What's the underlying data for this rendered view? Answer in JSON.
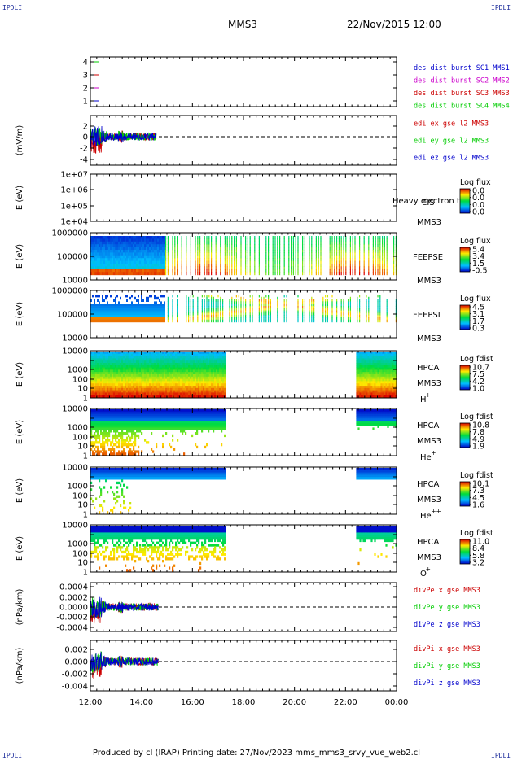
{
  "header": {
    "corner_label": "IPDLI",
    "title": "MMS3",
    "datetime": "22/Nov/2015 12:00"
  },
  "footer": {
    "text": "Produced by cl (IRAP)   Printing date: 27/Nov/2023   mms_mms3_srvy_vue_web2.cl"
  },
  "colors": {
    "red": "#cc0000",
    "green": "#00cc00",
    "blue": "#0000cc",
    "magenta": "#cc00cc"
  },
  "chart_data": {
    "type": "multi-panel time series",
    "x_range": [
      "12:00",
      "00:00"
    ],
    "x_ticks": [
      "12:00",
      "14:00",
      "16:00",
      "18:00",
      "20:00",
      "22:00",
      "00:00"
    ],
    "panels": [
      {
        "id": "burst",
        "ylabel": "",
        "yticks": [
          "4",
          "3",
          "2",
          "1"
        ],
        "ylim": [
          0.7,
          4.4
        ],
        "legend": [
          {
            "text": "des dist burst SC1 MMS1",
            "color": "#0000cc"
          },
          {
            "text": "des dist burst SC2 MMS2",
            "color": "#cc00cc"
          },
          {
            "text": "des dist burst SC3 MMS3",
            "color": "#cc0000"
          },
          {
            "text": "des dist burst SC4 MMS4",
            "color": "#00cc00"
          }
        ],
        "markers": [
          {
            "y": 4,
            "color": "#00cc00"
          },
          {
            "y": 3,
            "color": "#cc0000"
          },
          {
            "y": 2,
            "color": "#cc00cc"
          },
          {
            "y": 1,
            "color": "#0000cc"
          }
        ]
      },
      {
        "id": "edi",
        "ylabel": "(mV/m)",
        "yticks": [
          "2",
          "0",
          "-2",
          "-4"
        ],
        "ylim": [
          -4.4,
          3.2
        ],
        "legend": [
          {
            "text": "edi ex gse l2 MMS3",
            "color": "#cc0000"
          },
          {
            "text": "edi ey gse l2 MMS3",
            "color": "#00cc00"
          },
          {
            "text": "edi ez gse l2 MMS3",
            "color": "#0000cc"
          }
        ],
        "data_end": "14:35"
      },
      {
        "id": "eis",
        "ylabel": "E (eV)",
        "yticks": [
          "1e+07",
          "1e+06",
          "1e+05",
          "1e+04"
        ],
        "instrument": [
          "EIS",
          "MMS3"
        ],
        "overlay_text": "Heavy electron to",
        "colorbar_title": "Log flux",
        "colorbar_ticks": [
          "0.0",
          "0.0",
          "0.0",
          "0.0"
        ]
      },
      {
        "id": "feepse",
        "ylabel": "E (eV)",
        "yticks": [
          "1000000",
          "100000",
          "10000"
        ],
        "instrument": [
          "FEEPSE",
          "MMS3"
        ],
        "colorbar_title": "Log flux",
        "colorbar_ticks": [
          "5.4",
          "3.4",
          "1.5",
          "-0.5"
        ]
      },
      {
        "id": "feepsi",
        "ylabel": "E (eV)",
        "yticks": [
          "1000000",
          "100000",
          "10000"
        ],
        "instrument": [
          "FEEPSI",
          "MMS3"
        ],
        "colorbar_title": "Log flux",
        "colorbar_ticks": [
          "4.5",
          "3.1",
          "1.7",
          "0.3"
        ]
      },
      {
        "id": "hpca_h",
        "ylabel": "E (eV)",
        "yticks": [
          "10000",
          "1000",
          "100",
          "10",
          "1"
        ],
        "instrument": [
          "HPCA",
          "MMS3"
        ],
        "species": "H",
        "species_sup": "+",
        "colorbar_title": "Log fdist",
        "colorbar_ticks": [
          "10.7",
          "7.5",
          "4.2",
          "1.0"
        ],
        "data_gap": [
          "17:15",
          "22:25"
        ]
      },
      {
        "id": "hpca_he",
        "ylabel": "E (eV)",
        "yticks": [
          "10000",
          "1000",
          "100",
          "10",
          "1"
        ],
        "instrument": [
          "HPCA",
          "MMS3"
        ],
        "species": "He",
        "species_sup": "+",
        "colorbar_title": "Log fdist",
        "colorbar_ticks": [
          "10.8",
          "7.8",
          "4.9",
          "1.9"
        ],
        "data_gap": [
          "17:15",
          "22:25"
        ]
      },
      {
        "id": "hpca_hepp",
        "ylabel": "E (eV)",
        "yticks": [
          "10000",
          "1000",
          "100",
          "10",
          "1"
        ],
        "instrument": [
          "HPCA",
          "MMS3"
        ],
        "species": "He",
        "species_sup": "++",
        "colorbar_title": "Log fdist",
        "colorbar_ticks": [
          "10.1",
          "7.3",
          "4.5",
          "1.6"
        ],
        "data_gap": [
          "17:15",
          "22:25"
        ]
      },
      {
        "id": "hpca_o",
        "ylabel": "E (eV)",
        "yticks": [
          "10000",
          "1000",
          "100",
          "10",
          "1"
        ],
        "instrument": [
          "HPCA",
          "MMS3"
        ],
        "species": "O",
        "species_sup": "+",
        "colorbar_title": "Log fdist",
        "colorbar_ticks": [
          "11.0",
          "8.4",
          "5.8",
          "3.2"
        ],
        "data_gap": [
          "17:15",
          "22:25"
        ]
      },
      {
        "id": "divpe",
        "ylabel": "(nPa/km)",
        "yticks": [
          "0.0004",
          "0.0002",
          "0.0000",
          "-0.0002",
          "-0.0004"
        ],
        "ylim": [
          -0.0005,
          0.0005
        ],
        "legend": [
          {
            "text": "divPe x gse MMS3",
            "color": "#cc0000"
          },
          {
            "text": "divPe y gse MMS3",
            "color": "#00cc00"
          },
          {
            "text": "divPe z gse MMS3",
            "color": "#0000cc"
          }
        ],
        "data_end": "14:40"
      },
      {
        "id": "divpi",
        "ylabel": "(nPa/km)",
        "yticks": [
          "0.002",
          "0.000",
          "-0.002",
          "-0.004"
        ],
        "ylim": [
          -0.0047,
          0.0033
        ],
        "legend": [
          {
            "text": "divPi x gse MMS3",
            "color": "#cc0000"
          },
          {
            "text": "divPi y gse MMS3",
            "color": "#00cc00"
          },
          {
            "text": "divPi z gse MMS3",
            "color": "#0000cc"
          }
        ],
        "data_end": "14:40"
      }
    ]
  }
}
